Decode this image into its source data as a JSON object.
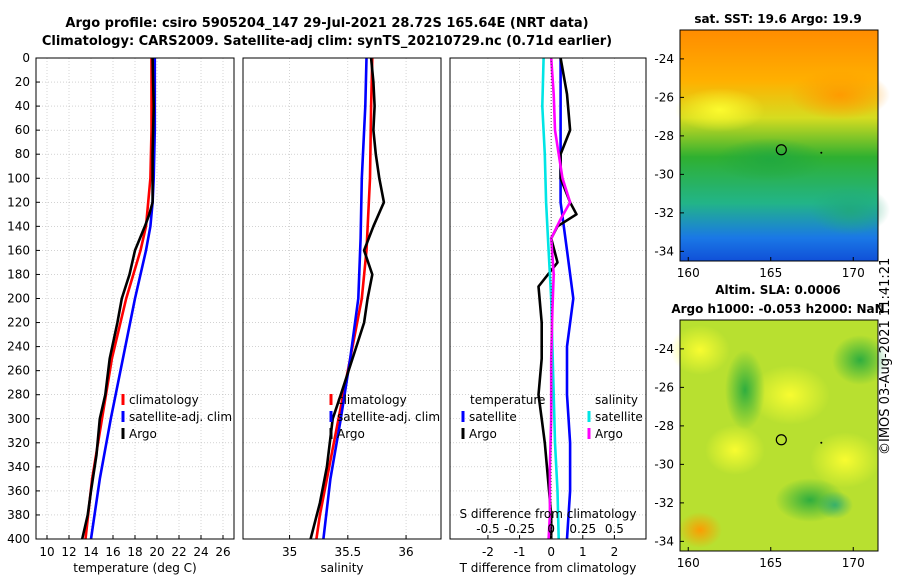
{
  "header": {
    "title_line1": "Argo profile: csiro 5905204_147 29-Jul-2021 28.72S 165.64E (NRT data)",
    "title_line2": "Climatology: CARS2009. Satellite-adj clim: synTS_20210729.nc (0.71d earlier)"
  },
  "stamp": "©IMOS 03-Aug-2021 11:41:21",
  "colors": {
    "clim": "#ff0000",
    "sat": "#0000ff",
    "argo": "#000000",
    "sal_sat": "#00e5e5",
    "sal_argo": "#ff00ff"
  },
  "chart_data": [
    {
      "type": "line",
      "id": "temperature",
      "xlabel": "temperature (deg C)",
      "ylabel": "",
      "xlim": [
        9,
        27
      ],
      "ylim": [
        400,
        0
      ],
      "xticks": [
        "10",
        "12",
        "14",
        "16",
        "18",
        "20",
        "22",
        "24",
        "26"
      ],
      "yticks": [
        "0",
        "20",
        "40",
        "60",
        "80",
        "100",
        "120",
        "140",
        "160",
        "180",
        "200",
        "220",
        "240",
        "260",
        "280",
        "300",
        "320",
        "340",
        "360",
        "380",
        "400"
      ],
      "grid": true,
      "legend": [
        "climatology",
        "satellite-adj. clim",
        "Argo"
      ],
      "series": [
        {
          "name": "climatology",
          "depth": [
            0,
            60,
            100,
            120,
            140,
            160,
            200,
            250,
            300,
            350,
            400
          ],
          "values": [
            19.5,
            19.5,
            19.4,
            19.2,
            19.0,
            18.5,
            17.2,
            15.9,
            15.0,
            14.1,
            13.5
          ]
        },
        {
          "name": "satellite-adj. clim",
          "depth": [
            0,
            60,
            100,
            120,
            140,
            160,
            200,
            250,
            300,
            350,
            400
          ],
          "values": [
            19.8,
            19.8,
            19.7,
            19.6,
            19.4,
            19.0,
            18.0,
            16.9,
            15.8,
            14.8,
            14.0
          ]
        },
        {
          "name": "Argo",
          "depth": [
            0,
            40,
            80,
            120,
            130,
            140,
            160,
            180,
            200,
            220,
            250,
            280,
            300,
            330,
            360,
            380,
            400
          ],
          "values": [
            19.6,
            19.7,
            19.6,
            19.6,
            19.3,
            18.9,
            18.0,
            17.5,
            16.8,
            16.4,
            15.7,
            15.3,
            14.8,
            14.5,
            14.0,
            13.7,
            13.2
          ]
        }
      ]
    },
    {
      "type": "line",
      "id": "salinity",
      "xlabel": "salinity",
      "xlim": [
        34.6,
        36.3
      ],
      "ylim": [
        400,
        0
      ],
      "xticks": [
        "35",
        "35.5",
        "36"
      ],
      "grid": true,
      "legend": [
        "climatology",
        "satellite-adj. clim",
        "Argo"
      ],
      "series": [
        {
          "name": "climatology",
          "depth": [
            0,
            40,
            100,
            160,
            200,
            250,
            300,
            350,
            380,
            400
          ],
          "values": [
            35.71,
            35.7,
            35.69,
            35.66,
            35.62,
            35.52,
            35.42,
            35.32,
            35.26,
            35.23
          ]
        },
        {
          "name": "satellite-adj. clim",
          "depth": [
            0,
            40,
            100,
            150,
            200,
            250,
            300,
            350,
            400
          ],
          "values": [
            35.66,
            35.65,
            35.62,
            35.61,
            35.59,
            35.52,
            35.44,
            35.35,
            35.29
          ]
        },
        {
          "name": "Argo",
          "depth": [
            0,
            20,
            40,
            60,
            80,
            100,
            120,
            140,
            160,
            180,
            200,
            220,
            250,
            280,
            300,
            340,
            370,
            400
          ],
          "values": [
            35.7,
            35.72,
            35.73,
            35.72,
            35.74,
            35.77,
            35.81,
            35.72,
            35.64,
            35.71,
            35.67,
            35.64,
            35.54,
            35.44,
            35.37,
            35.32,
            35.26,
            35.18
          ]
        }
      ]
    },
    {
      "type": "line",
      "id": "difference",
      "xlabel": "T difference from climatology",
      "x2label": "S difference from climatology",
      "xlim": [
        -3.2,
        3.0
      ],
      "ylim": [
        400,
        0
      ],
      "xticks": [
        "-2",
        "-1",
        "0",
        "1",
        "2"
      ],
      "x2ticks": [
        "-0.5",
        "-0.25",
        "0",
        "0.25",
        "0.5"
      ],
      "grid": true,
      "legend_temperature": [
        "temperature",
        "satellite",
        "Argo"
      ],
      "legend_salinity": [
        "salinity",
        "satellite",
        "Argo"
      ],
      "series": [
        {
          "name": "temperature satellite",
          "depth": [
            0,
            40,
            80,
            120,
            160,
            200,
            240,
            280,
            320,
            360,
            400
          ],
          "values": [
            0.3,
            0.3,
            0.3,
            0.3,
            0.5,
            0.7,
            0.5,
            0.5,
            0.6,
            0.6,
            0.5
          ]
        },
        {
          "name": "temperature Argo",
          "depth": [
            0,
            30,
            60,
            80,
            100,
            120,
            130,
            140,
            150,
            170,
            190,
            220,
            250,
            280,
            300,
            320,
            350,
            380,
            400
          ],
          "values": [
            0.3,
            0.5,
            0.6,
            0.3,
            0.3,
            0.6,
            0.8,
            0.2,
            0.0,
            0.2,
            -0.4,
            -0.3,
            -0.3,
            -0.4,
            -0.3,
            -0.2,
            -0.1,
            0.0,
            0.0
          ]
        },
        {
          "name": "salinity satellite",
          "depth": [
            0,
            40,
            80,
            120,
            160,
            200,
            240,
            280,
            320,
            360,
            400
          ],
          "values": [
            -0.06,
            -0.07,
            -0.05,
            -0.04,
            -0.02,
            0.0,
            0.01,
            0.02,
            0.03,
            0.05,
            0.06
          ]
        },
        {
          "name": "salinity Argo",
          "depth": [
            0,
            30,
            60,
            80,
            100,
            120,
            135,
            150,
            180,
            210,
            250,
            300,
            340,
            380,
            400
          ],
          "values": [
            0.0,
            0.02,
            0.03,
            0.06,
            0.09,
            0.15,
            0.07,
            0.0,
            0.02,
            0.01,
            0.0,
            0.0,
            -0.01,
            -0.01,
            -0.02
          ]
        }
      ]
    },
    {
      "type": "heatmap",
      "id": "sst_map",
      "title": "sat. SST: 19.6 Argo: 19.9",
      "xlim": [
        159.5,
        171.5
      ],
      "ylim": [
        -34.5,
        -22.5
      ],
      "xticks": [
        "160",
        "165",
        "170"
      ],
      "yticks": [
        "-24",
        "-26",
        "-28",
        "-30",
        "-32",
        "-34"
      ],
      "marker": {
        "lon": 165.64,
        "lat": -28.72
      }
    },
    {
      "type": "heatmap",
      "id": "sla_map",
      "title_line1": "Altim. SLA: 0.0006",
      "title_line2": "Argo h1000: -0.053 h2000: NaN",
      "xlim": [
        159.5,
        171.5
      ],
      "ylim": [
        -34.5,
        -22.5
      ],
      "xticks": [
        "160",
        "165",
        "170"
      ],
      "yticks": [
        "-24",
        "-26",
        "-28",
        "-30",
        "-32",
        "-34"
      ],
      "marker": {
        "lon": 165.64,
        "lat": -28.72
      }
    }
  ]
}
